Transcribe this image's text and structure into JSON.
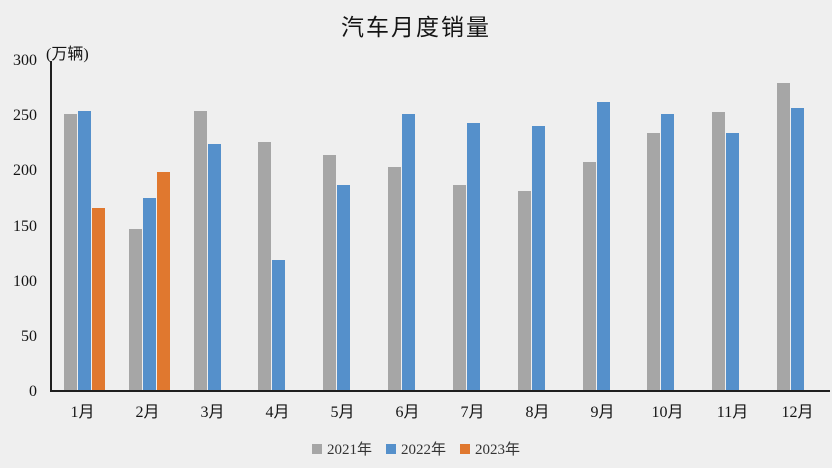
{
  "chart_data": {
    "type": "bar",
    "title": "汽车月度销量",
    "unit_label": "(万辆)",
    "categories": [
      "1月",
      "2月",
      "3月",
      "4月",
      "5月",
      "6月",
      "7月",
      "8月",
      "9月",
      "10月",
      "11月",
      "12月"
    ],
    "series": [
      {
        "name": "2021年",
        "color": "#a6a6a6",
        "values": [
          250,
          146,
          253,
          225,
          213,
          202,
          186,
          180,
          207,
          233,
          252,
          278
        ]
      },
      {
        "name": "2022年",
        "color": "#5590cb",
        "values": [
          253,
          174,
          223,
          118,
          186,
          250,
          242,
          239,
          261,
          250,
          233,
          256
        ]
      },
      {
        "name": "2023年",
        "color": "#e0782f",
        "values": [
          165,
          198,
          null,
          null,
          null,
          null,
          null,
          null,
          null,
          null,
          null,
          null
        ]
      }
    ],
    "ylim": [
      0,
      300
    ],
    "ytick_step": 50,
    "ytick_labels": [
      "0",
      "50",
      "100",
      "150",
      "200",
      "250",
      "300"
    ],
    "xlabel": "",
    "ylabel": "(万辆)",
    "grid": false,
    "legend_position": "bottom"
  },
  "colors": {
    "background": "#efefef",
    "axis": "#1f1f1f",
    "text": "#141414"
  }
}
